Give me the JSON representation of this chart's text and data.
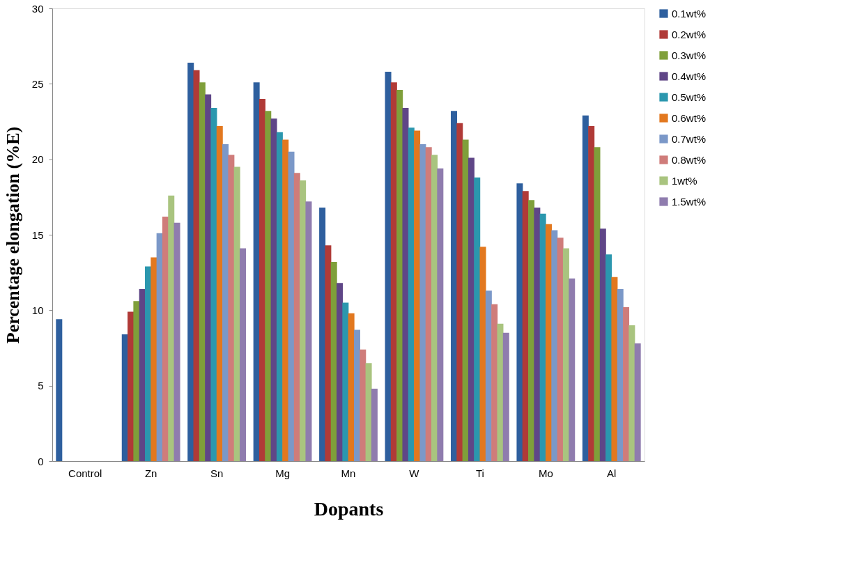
{
  "chart_data": {
    "type": "bar",
    "xlabel": "Dopants",
    "ylabel": "Percentage elongation (%E)",
    "categories": [
      "Control",
      "Zn",
      "Sn",
      "Mg",
      "Mn",
      "W",
      "Ti",
      "Mo",
      "Al"
    ],
    "series": [
      {
        "name": "0.1wt%",
        "color": "#2e5f9e",
        "values": [
          9.4,
          8.4,
          26.4,
          25.1,
          16.8,
          25.8,
          23.2,
          18.4,
          22.9
        ]
      },
      {
        "name": "0.2wt%",
        "color": "#b03a37",
        "values": [
          null,
          9.9,
          25.9,
          24.0,
          14.3,
          25.1,
          22.4,
          17.9,
          22.2
        ]
      },
      {
        "name": "0.3wt%",
        "color": "#7f9f3a",
        "values": [
          null,
          10.6,
          25.1,
          23.2,
          13.2,
          24.6,
          21.3,
          17.3,
          20.8
        ]
      },
      {
        "name": "0.4wt%",
        "color": "#5f4687",
        "values": [
          null,
          11.4,
          24.3,
          22.7,
          11.8,
          23.4,
          20.1,
          16.8,
          15.4
        ]
      },
      {
        "name": "0.5wt%",
        "color": "#2b97ae",
        "values": [
          null,
          12.9,
          23.4,
          21.8,
          10.5,
          22.1,
          18.8,
          16.4,
          13.7
        ]
      },
      {
        "name": "0.6wt%",
        "color": "#e2781f",
        "values": [
          null,
          13.5,
          22.2,
          21.3,
          9.8,
          21.9,
          14.2,
          15.7,
          12.2
        ]
      },
      {
        "name": "0.7wt%",
        "color": "#7b98c8",
        "values": [
          null,
          15.1,
          21.0,
          20.5,
          8.7,
          21.0,
          11.3,
          15.3,
          11.4
        ]
      },
      {
        "name": "0.8wt%",
        "color": "#cf7c7a",
        "values": [
          null,
          16.2,
          20.3,
          19.1,
          7.4,
          20.8,
          10.4,
          14.8,
          10.2
        ]
      },
      {
        "name": "1wt%",
        "color": "#a9c47f",
        "values": [
          null,
          17.6,
          19.5,
          18.6,
          6.5,
          20.3,
          9.1,
          14.1,
          9.0
        ]
      },
      {
        "name": "1.5wt%",
        "color": "#8f7cae",
        "values": [
          null,
          15.8,
          14.1,
          17.2,
          4.8,
          19.4,
          8.5,
          12.1,
          7.8
        ]
      }
    ],
    "ylim": [
      0,
      30
    ],
    "yticks": [
      0,
      5,
      10,
      15,
      20,
      25,
      30
    ],
    "grid": false,
    "legend": "right"
  }
}
